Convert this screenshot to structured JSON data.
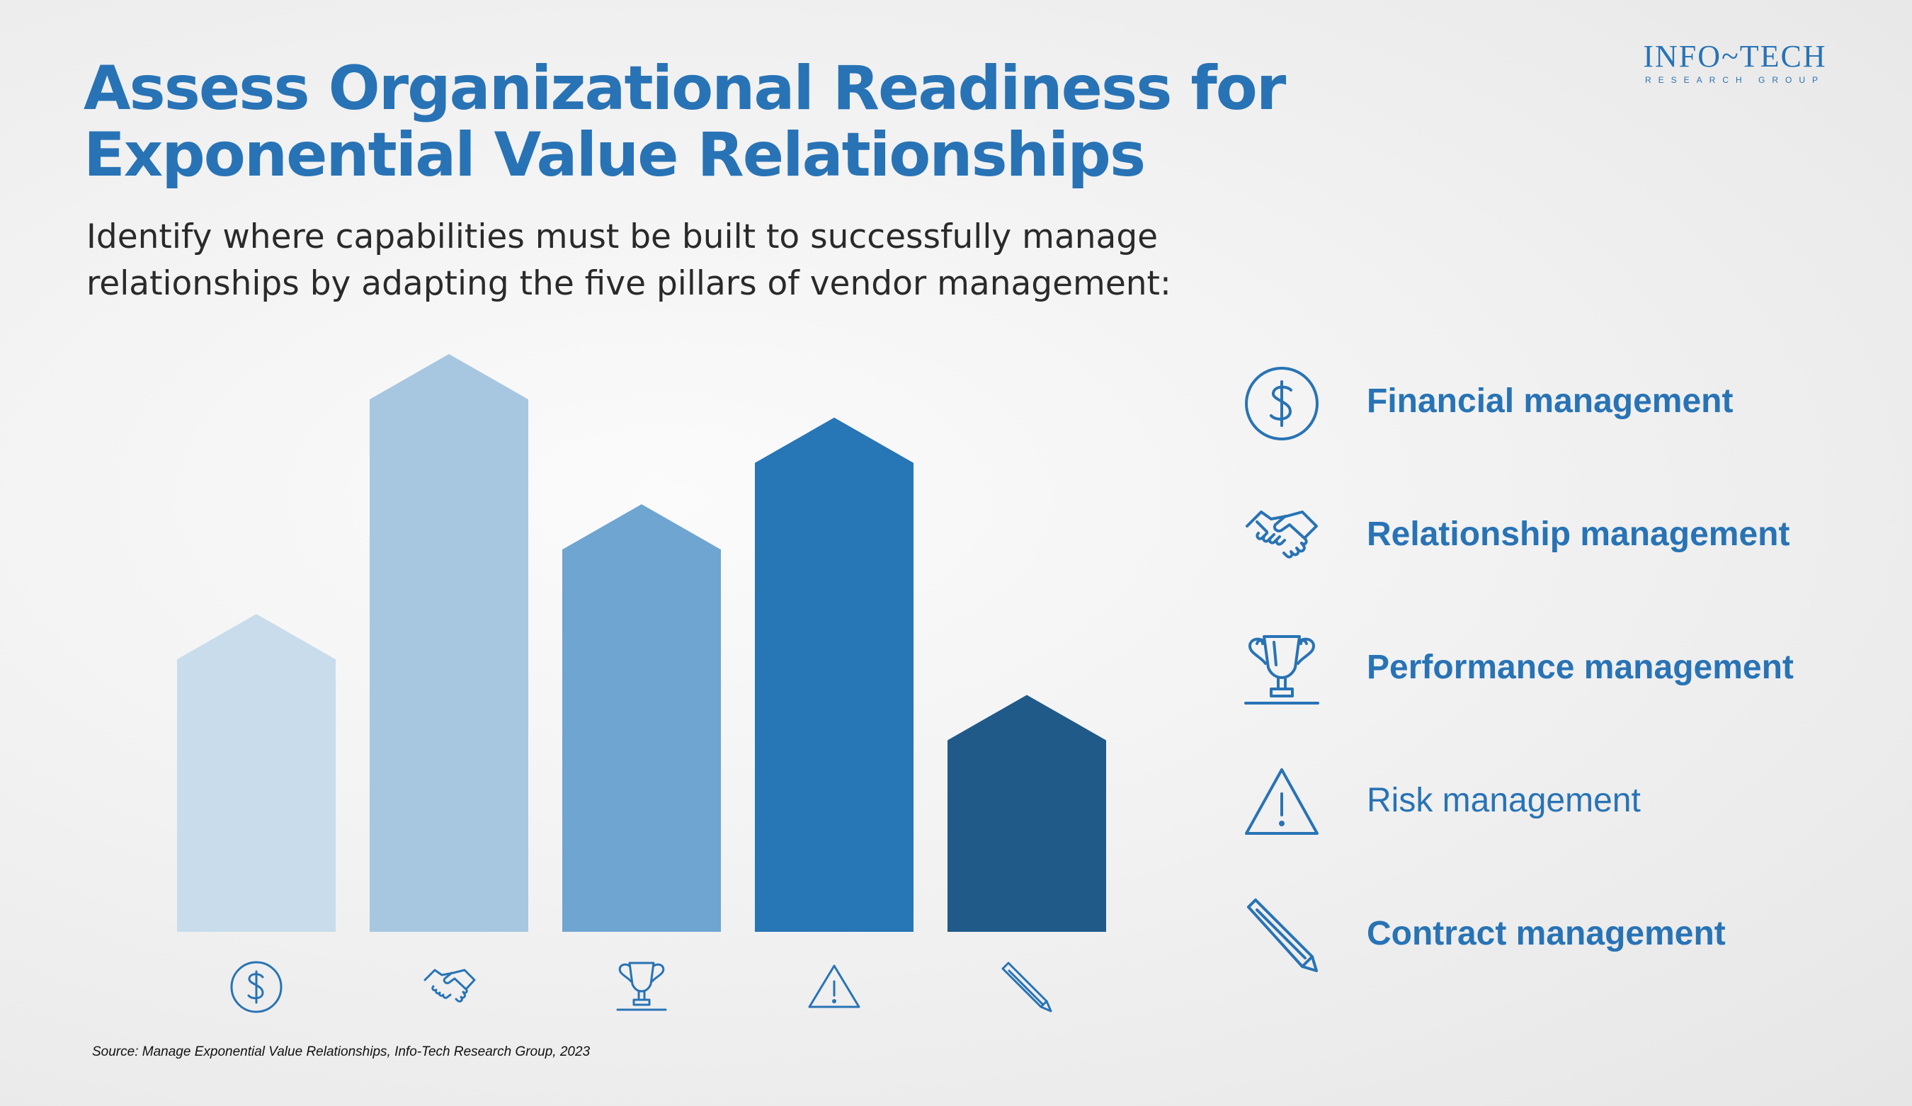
{
  "header": {
    "title_line1": "Assess Organizational Readiness for",
    "title_line2": "Exponential Value Relationships",
    "subtitle_line1": "Identify where capabilities must be built to successfully manage",
    "subtitle_line2": "relationships by adapting the five pillars of vendor management:"
  },
  "logo": {
    "main": "INFO~TECH",
    "sub": "RESEARCH GROUP"
  },
  "chart_data": {
    "type": "bar",
    "title": "",
    "xlabel": "",
    "ylabel": "",
    "categories": [
      "Financial management",
      "Relationship management",
      "Performance management",
      "Risk management",
      "Contract management"
    ],
    "values": [
      0.55,
      1.0,
      0.74,
      0.89,
      0.41
    ],
    "ylim": [
      0,
      1.0
    ],
    "grid": false,
    "legend_placement": "right",
    "bar_shape": "house-arrow",
    "icons": [
      "dollar-icon",
      "handshake-icon",
      "trophy-icon",
      "warning-icon",
      "pencil-icon"
    ],
    "colors": [
      "#c8dceb",
      "#a7c7e1",
      "#6ea5d1",
      "#2776b5",
      "#1f5a89"
    ]
  },
  "legend": {
    "items": [
      {
        "label": "Financial management",
        "icon": "dollar-icon",
        "bold": true
      },
      {
        "label": "Relationship management",
        "icon": "handshake-icon",
        "bold": true
      },
      {
        "label": "Performance management",
        "icon": "trophy-icon",
        "bold": true
      },
      {
        "label": "Risk management",
        "icon": "warning-icon",
        "bold": false
      },
      {
        "label": "Contract management",
        "icon": "pencil-icon",
        "bold": true
      }
    ]
  },
  "footer": {
    "source": "Source: Manage Exponential Value Relationships, Info-Tech Research Group, 2023"
  },
  "colors": {
    "accent": "#2873b5",
    "icon_stroke": "#2873b5",
    "text_dark": "#2a2a2a"
  }
}
